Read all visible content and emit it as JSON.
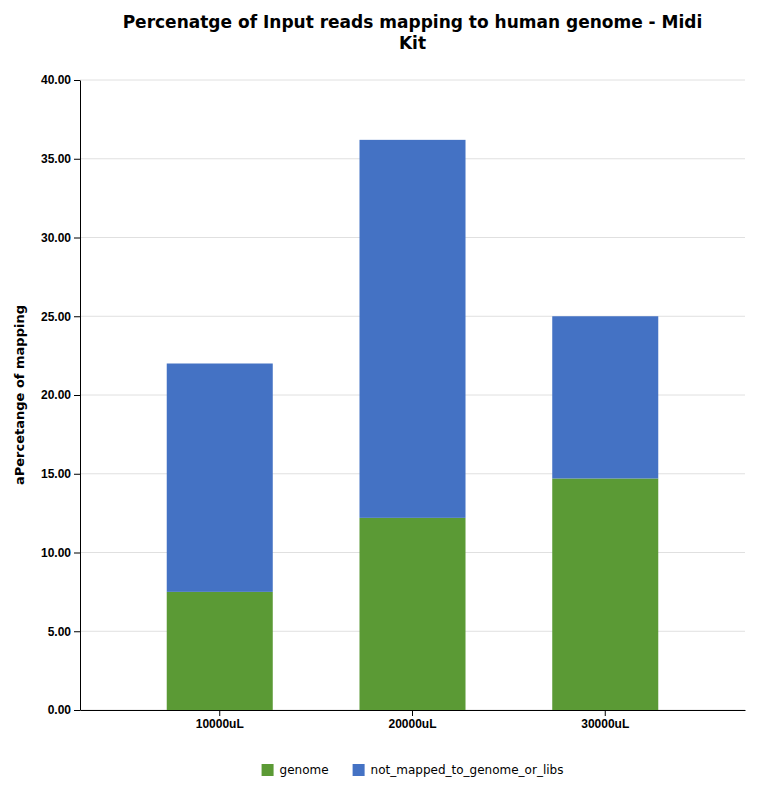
{
  "chart_data": {
    "type": "bar",
    "stacked": true,
    "title": "Percenatge of Input reads mapping to human genome - Midi\nKit",
    "ylabel": "aPercetange of mapping",
    "categories": [
      "10000uL",
      "20000uL",
      "30000uL"
    ],
    "series": [
      {
        "name": "genome",
        "color": "#5b9a35",
        "values": [
          7.5,
          12.2,
          14.7
        ]
      },
      {
        "name": "not_mapped_to_genome_or_libs",
        "color": "#4472c4",
        "values": [
          14.5,
          24.0,
          10.3
        ]
      }
    ],
    "ylim": [
      0,
      40
    ],
    "yticks": [
      {
        "value": 0.0,
        "label": "0.00"
      },
      {
        "value": 5.0,
        "label": "5.00"
      },
      {
        "value": 10.0,
        "label": "10.00"
      },
      {
        "value": 15.0,
        "label": "15.00"
      },
      {
        "value": 20.0,
        "label": "20.00"
      },
      {
        "value": 25.0,
        "label": "25.00"
      },
      {
        "value": 30.0,
        "label": "30.00"
      },
      {
        "value": 35.0,
        "label": "35.00"
      },
      {
        "value": 40.0,
        "label": "40.00"
      }
    ],
    "grid": true,
    "legend": "bottom"
  }
}
